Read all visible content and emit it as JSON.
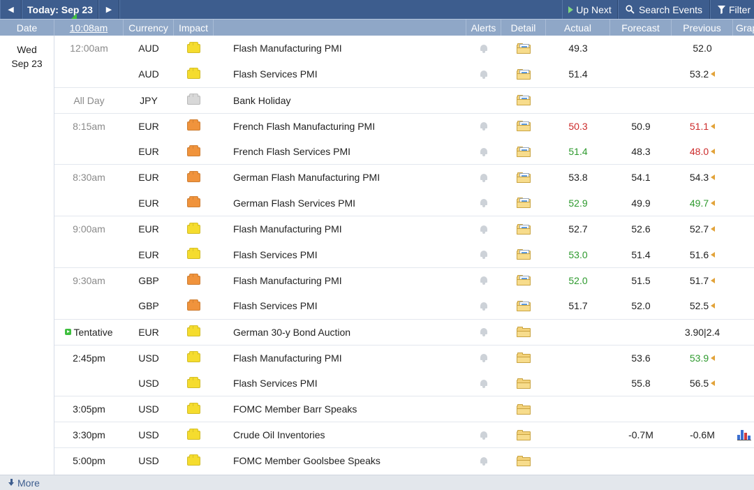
{
  "toolbar": {
    "prev_icon": "left-arrow-icon",
    "today_label": "Today: Sep 23",
    "next_icon": "right-arrow-icon",
    "up_next_label": "Up Next",
    "search_label": "Search Events",
    "filter_label": "Filter"
  },
  "header": {
    "date": "Date",
    "time": "10:08am",
    "currency": "Currency",
    "impact": "Impact",
    "alerts": "Alerts",
    "detail": "Detail",
    "actual": "Actual",
    "forecast": "Forecast",
    "previous": "Previous",
    "graph": "Grap"
  },
  "date_cell": {
    "weekday": "Wed",
    "day": "Sep 23"
  },
  "colors": {
    "toolbar_bg": "#3d5d8e",
    "header_bg": "#8fa7c7",
    "impact_low": "#f5dc2e",
    "impact_medium": "#f0933c",
    "impact_holiday": "#d8d8d8",
    "better": "#2e9a2e",
    "worse": "#cc2b2b"
  },
  "rows": [
    {
      "time": "12:00am",
      "currency": "AUD",
      "impact": "low",
      "event": "Flash Manufacturing PMI",
      "actual": "49.3",
      "actual_class": "",
      "forecast": "",
      "previous": "52.0",
      "previous_class": "",
      "revised": false,
      "detail_type": "paper",
      "alert": true,
      "graph": false
    },
    {
      "time": "",
      "currency": "AUD",
      "impact": "low",
      "event": "Flash Services PMI",
      "actual": "51.4",
      "actual_class": "",
      "forecast": "",
      "previous": "53.2",
      "previous_class": "",
      "revised": true,
      "detail_type": "paper",
      "alert": true,
      "graph": false
    },
    {
      "time": "All Day",
      "currency": "JPY",
      "impact": "holiday",
      "event": "Bank Holiday",
      "actual": "",
      "actual_class": "",
      "forecast": "",
      "previous": "",
      "previous_class": "",
      "revised": false,
      "detail_type": "paper",
      "alert": false,
      "graph": false
    },
    {
      "time": "8:15am",
      "currency": "EUR",
      "impact": "medium",
      "event": "French Flash Manufacturing PMI",
      "actual": "50.3",
      "actual_class": "red",
      "forecast": "50.9",
      "previous": "51.1",
      "previous_class": "red",
      "revised": true,
      "detail_type": "paper",
      "alert": true,
      "graph": false
    },
    {
      "time": "",
      "currency": "EUR",
      "impact": "medium",
      "event": "French Flash Services PMI",
      "actual": "51.4",
      "actual_class": "green",
      "forecast": "48.3",
      "previous": "48.0",
      "previous_class": "red",
      "revised": true,
      "detail_type": "paper",
      "alert": true,
      "graph": false
    },
    {
      "time": "8:30am",
      "currency": "EUR",
      "impact": "medium",
      "event": "German Flash Manufacturing PMI",
      "actual": "53.8",
      "actual_class": "",
      "forecast": "54.1",
      "previous": "54.3",
      "previous_class": "",
      "revised": true,
      "detail_type": "paper",
      "alert": true,
      "graph": false
    },
    {
      "time": "",
      "currency": "EUR",
      "impact": "medium",
      "event": "German Flash Services PMI",
      "actual": "52.9",
      "actual_class": "green",
      "forecast": "49.9",
      "previous": "49.7",
      "previous_class": "green",
      "revised": true,
      "detail_type": "paper",
      "alert": true,
      "graph": false
    },
    {
      "time": "9:00am",
      "currency": "EUR",
      "impact": "low",
      "event": "Flash Manufacturing PMI",
      "actual": "52.7",
      "actual_class": "",
      "forecast": "52.6",
      "previous": "52.7",
      "previous_class": "",
      "revised": true,
      "detail_type": "paper",
      "alert": true,
      "graph": false
    },
    {
      "time": "",
      "currency": "EUR",
      "impact": "low",
      "event": "Flash Services PMI",
      "actual": "53.0",
      "actual_class": "green",
      "forecast": "51.4",
      "previous": "51.6",
      "previous_class": "",
      "revised": true,
      "detail_type": "paper",
      "alert": true,
      "graph": false
    },
    {
      "time": "9:30am",
      "currency": "GBP",
      "impact": "medium",
      "event": "Flash Manufacturing PMI",
      "actual": "52.0",
      "actual_class": "green",
      "forecast": "51.5",
      "previous": "51.7",
      "previous_class": "",
      "revised": true,
      "detail_type": "paper",
      "alert": true,
      "graph": false
    },
    {
      "time": "",
      "currency": "GBP",
      "impact": "medium",
      "event": "Flash Services PMI",
      "actual": "51.7",
      "actual_class": "",
      "forecast": "52.0",
      "previous": "52.5",
      "previous_class": "",
      "revised": true,
      "detail_type": "paper",
      "alert": true,
      "graph": false
    },
    {
      "time": "Tentative",
      "currency": "EUR",
      "impact": "low",
      "event": "German 30-y Bond Auction",
      "actual": "",
      "actual_class": "",
      "forecast": "",
      "previous": "3.90|2.4",
      "previous_class": "",
      "revised": false,
      "detail_type": "plain",
      "alert": true,
      "graph": false
    },
    {
      "time": "2:45pm",
      "currency": "USD",
      "impact": "low",
      "event": "Flash Manufacturing PMI",
      "actual": "",
      "actual_class": "",
      "forecast": "53.6",
      "previous": "53.9",
      "previous_class": "green",
      "revised": true,
      "detail_type": "plain",
      "alert": true,
      "graph": false
    },
    {
      "time": "",
      "currency": "USD",
      "impact": "low",
      "event": "Flash Services PMI",
      "actual": "",
      "actual_class": "",
      "forecast": "55.8",
      "previous": "56.5",
      "previous_class": "",
      "revised": true,
      "detail_type": "plain",
      "alert": true,
      "graph": false
    },
    {
      "time": "3:05pm",
      "currency": "USD",
      "impact": "low",
      "event": "FOMC Member Barr Speaks",
      "actual": "",
      "actual_class": "",
      "forecast": "",
      "previous": "",
      "previous_class": "",
      "revised": false,
      "detail_type": "plain",
      "alert": false,
      "graph": false
    },
    {
      "time": "3:30pm",
      "currency": "USD",
      "impact": "low",
      "event": "Crude Oil Inventories",
      "actual": "",
      "actual_class": "",
      "forecast": "-0.7M",
      "previous": "-0.6M",
      "previous_class": "",
      "revised": false,
      "detail_type": "plain",
      "alert": true,
      "graph": true
    },
    {
      "time": "5:00pm",
      "currency": "USD",
      "impact": "low",
      "event": "FOMC Member Goolsbee Speaks",
      "actual": "",
      "actual_class": "",
      "forecast": "",
      "previous": "",
      "previous_class": "",
      "revised": false,
      "detail_type": "plain",
      "alert": true,
      "graph": false
    }
  ],
  "footer": {
    "more_label": "More",
    "more_icon": "down-arrow-icon"
  }
}
